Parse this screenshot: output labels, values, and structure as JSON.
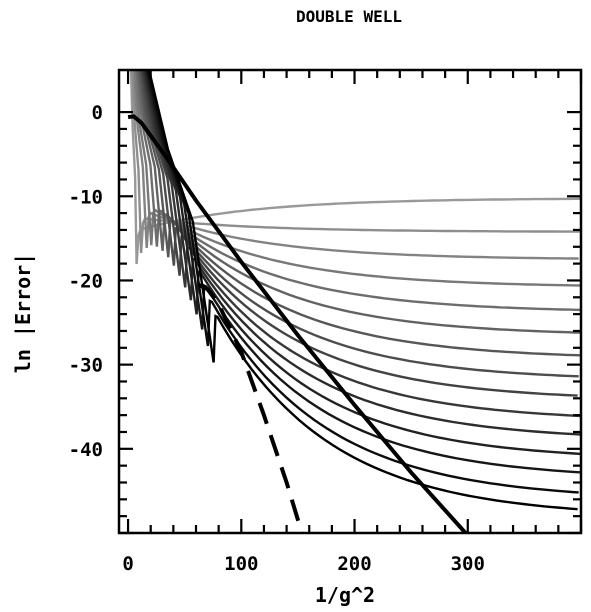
{
  "chart_data": {
    "type": "line",
    "title": "DOUBLE WELL",
    "xlabel": "1/g^2",
    "ylabel": "ln |Error|",
    "xlim": [
      -8,
      400
    ],
    "ylim": [
      -50,
      5
    ],
    "x_ticks": [
      0,
      100,
      200,
      300
    ],
    "x_tick_labels": [
      "0",
      "100",
      "200",
      "300"
    ],
    "y_ticks": [
      0,
      -10,
      -20,
      -30,
      -40
    ],
    "y_tick_labels": [
      "0",
      "-10",
      "-20",
      "-30",
      "-40"
    ],
    "grid": false,
    "legend": "none",
    "curve_family": {
      "count": 15,
      "start_x": [
        8,
        12,
        17,
        21,
        26,
        31,
        36,
        41,
        46,
        51,
        56,
        61,
        66,
        71,
        76
      ],
      "end_y_at_x400": [
        -10.3,
        -14.2,
        -17.4,
        -20.6,
        -23.5,
        -26.2,
        -28.9,
        -31.4,
        -33.7,
        -36.1,
        -38.3,
        -40.6,
        -42.8,
        -45.2,
        -47.2
      ],
      "color_light": "#999999",
      "color_dark": "#000000"
    },
    "bold_line": {
      "style": "solid",
      "points": [
        [
          0,
          -0.6
        ],
        [
          5,
          -0.5
        ],
        [
          12,
          -1.3
        ],
        [
          20,
          -2.8
        ],
        [
          35,
          -5.6
        ],
        [
          60,
          -10.5
        ],
        [
          100,
          -17.8
        ],
        [
          150,
          -26.5
        ],
        [
          200,
          -34.8
        ],
        [
          250,
          -42.8
        ],
        [
          300,
          -50.3
        ],
        [
          312,
          -52
        ]
      ]
    },
    "dashed_line": {
      "style": "dashed",
      "points": [
        [
          62,
          -20.5
        ],
        [
          70,
          -21
        ],
        [
          80,
          -22.8
        ],
        [
          100,
          -28.5
        ],
        [
          120,
          -36
        ],
        [
          140,
          -44
        ],
        [
          158,
          -52
        ]
      ]
    }
  }
}
